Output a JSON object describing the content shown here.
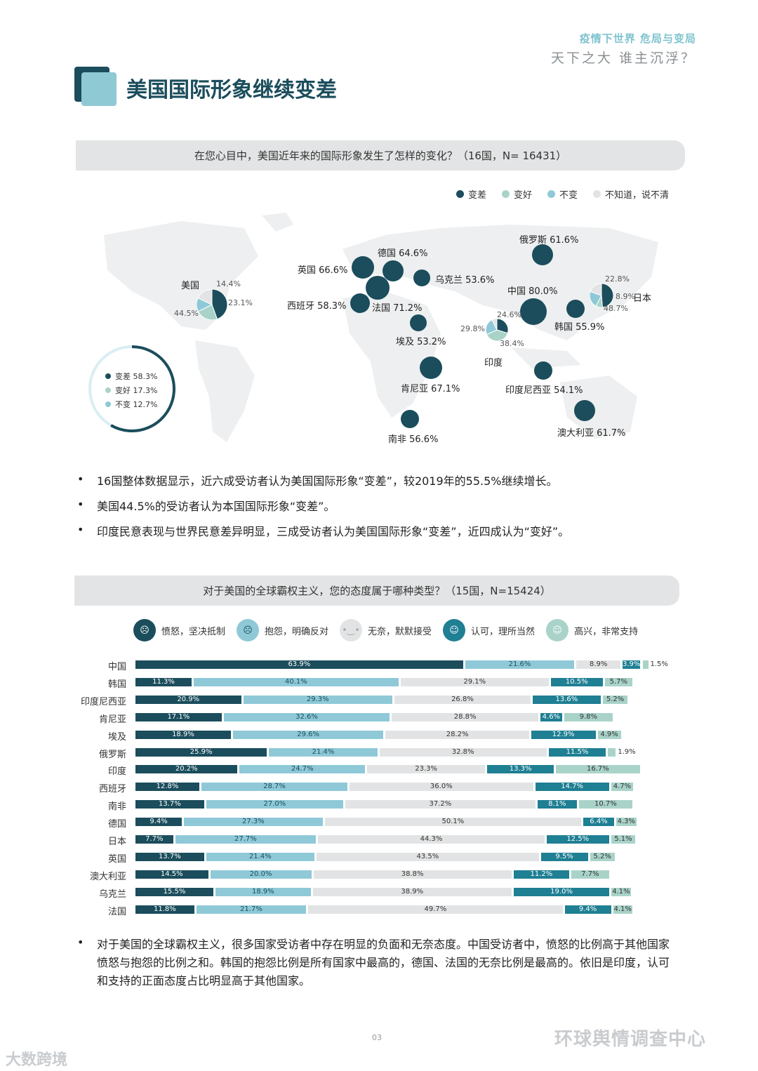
{
  "header": {
    "top_right": "疫情下世界   危局与变局",
    "slogan": "天下之大 谁主沉浮？"
  },
  "section_title": "美国国际形象继续变差",
  "q1": {
    "text": "在您心目中，美国近年来的国际形象发生了怎样的变化？（16国，N= 16431）"
  },
  "map": {
    "legend": [
      {
        "label": "变差",
        "color": "#1b4d5c"
      },
      {
        "label": "变好",
        "color": "#a9d3c9"
      },
      {
        "label": "不变",
        "color": "#8fc9d8"
      },
      {
        "label": "不知道，说不清",
        "color": "#e2e3e4"
      }
    ],
    "countries": [
      {
        "label": "俄罗斯 61.6%",
        "value": 61.6
      },
      {
        "label": "德国 64.6%",
        "value": 64.6
      },
      {
        "label": "英国 66.6%",
        "value": 66.6
      },
      {
        "label": "乌克兰 53.6%",
        "value": 53.6
      },
      {
        "label": "中国 80.0%",
        "value": 80.0
      },
      {
        "label": "西班牙 58.3%",
        "value": 58.3
      },
      {
        "label": "法国 71.2%",
        "value": 71.2
      },
      {
        "label": "埃及 53.2%",
        "value": 53.2
      },
      {
        "label": "韩国 55.9%",
        "value": 55.9
      },
      {
        "label": "肯尼亚 67.1%",
        "value": 67.1
      },
      {
        "label": "印度尼西亚 54.1%",
        "value": 54.1
      },
      {
        "label": "南非 56.6%",
        "value": 56.6
      },
      {
        "label": "澳大利亚 61.7%",
        "value": 61.7
      }
    ],
    "pies": [
      {
        "name": "美国",
        "worse": "44.5%",
        "better": "23.1%",
        "same": "14.4%",
        "values": [
          44.5,
          23.1,
          14.4,
          18.0
        ]
      },
      {
        "name": "印度",
        "worse": "29.8%",
        "better": "38.4%",
        "same": "24.6%",
        "values": [
          29.8,
          38.4,
          24.6,
          7.2
        ]
      },
      {
        "name": "日本",
        "worse": "48.7%",
        "better": "8.9%",
        "same": "22.8%",
        "values": [
          48.7,
          8.9,
          22.8,
          19.6
        ]
      }
    ],
    "overall": [
      {
        "label": "变差 58.3%",
        "value": 58.3
      },
      {
        "label": "变好 17.3%",
        "value": 17.3
      },
      {
        "label": "不变 12.7%",
        "value": 12.7
      }
    ]
  },
  "bullets1": [
    "16国整体数据显示，近六成受访者认为美国国际形象“变差”，较2019年的55.5%继续增长。",
    "美国44.5%的受访者认为本国国际形象“变差”。",
    "印度民意表现与世界民意差异明显，三成受访者认为美国国际形象“变差”，近四成认为“变好”。"
  ],
  "q2": {
    "text": "对于美国的全球霸权主义，您的态度属于哪种类型？（15国，N=15424）"
  },
  "attitudes": [
    {
      "label": "愤怒，坚决抵制",
      "color": "#1b4d5c"
    },
    {
      "label": "抱怨，明确反对",
      "color": "#8fc9d8"
    },
    {
      "label": "无奈，默默接受",
      "color": "#e2e3e4"
    },
    {
      "label": "认可，理所当然",
      "color": "#1f7f93"
    },
    {
      "label": "高兴，非常支持",
      "color": "#a9d3c9"
    }
  ],
  "chart_data": {
    "type": "bar",
    "stacked": true,
    "orientation": "horizontal",
    "categories": [
      "中国",
      "韩国",
      "印度尼西亚",
      "肯尼亚",
      "埃及",
      "俄罗斯",
      "印度",
      "西班牙",
      "南非",
      "德国",
      "日本",
      "英国",
      "澳大利亚",
      "乌克兰",
      "法国"
    ],
    "series": [
      {
        "name": "愤怒，坚决抵制",
        "values": [
          63.9,
          11.3,
          20.9,
          17.1,
          18.9,
          25.9,
          20.2,
          12.8,
          13.7,
          9.4,
          7.7,
          13.7,
          14.5,
          15.5,
          11.8
        ]
      },
      {
        "name": "抱怨，明确反对",
        "values": [
          21.6,
          40.1,
          29.3,
          32.6,
          29.6,
          21.4,
          24.7,
          28.7,
          27.0,
          27.3,
          27.7,
          21.4,
          20.0,
          18.9,
          21.7
        ]
      },
      {
        "name": "无奈，默默接受",
        "values": [
          8.9,
          29.1,
          26.8,
          28.8,
          28.2,
          32.8,
          23.3,
          36.0,
          37.2,
          50.1,
          44.3,
          43.5,
          38.8,
          38.9,
          49.7
        ]
      },
      {
        "name": "认可，理所当然",
        "values": [
          3.9,
          10.5,
          13.6,
          4.6,
          12.9,
          11.5,
          13.3,
          14.7,
          8.1,
          6.4,
          12.5,
          9.5,
          11.2,
          19.0,
          9.4
        ]
      },
      {
        "name": "高兴，非常支持",
        "values": [
          1.5,
          5.7,
          5.2,
          9.8,
          4.9,
          1.9,
          16.7,
          4.7,
          10.7,
          4.3,
          5.1,
          5.2,
          7.7,
          4.1,
          4.1
        ]
      }
    ],
    "labels": [
      [
        "63.9%",
        "21.6%",
        "8.9%",
        "3.9%",
        "1.5%"
      ],
      [
        "11.3%",
        "40.1%",
        "29.1%",
        "10.5%",
        "5.7%"
      ],
      [
        "20.9%",
        "29.3%",
        "26.8%",
        "13.6%",
        "5.2%"
      ],
      [
        "17.1%",
        "32.6%",
        "28.8%",
        "4.6%",
        "9.8%"
      ],
      [
        "18.9%",
        "29.6%",
        "28.2%",
        "12.9%",
        "4.9%"
      ],
      [
        "25.9%",
        "21.4%",
        "32.8%",
        "11.5%",
        "1.9%"
      ],
      [
        "20.2%",
        "24.7%",
        "23.3%",
        "13.3%",
        "16.7%"
      ],
      [
        "12.8%",
        "28.7%",
        "36.0%",
        "14.7%",
        "4.7%"
      ],
      [
        "13.7%",
        "27.0%",
        "37.2%",
        "8.1%",
        "10.7%"
      ],
      [
        "9.4%",
        "27.3%",
        "50.1%",
        "6.4%",
        "4.3%"
      ],
      [
        "7.7%",
        "27.7%",
        "44.3%",
        "12.5%",
        "5.1%"
      ],
      [
        "13.7%",
        "21.4%",
        "43.5%",
        "9.5%",
        "5.2%"
      ],
      [
        "14.5%",
        "20.0%",
        "38.8%",
        "11.2%",
        "7.7%"
      ],
      [
        "15.5%",
        "18.9%",
        "38.9%",
        "19.0%",
        "4.1%"
      ],
      [
        "11.8%",
        "21.7%",
        "49.7%",
        "9.4%",
        "4.1%"
      ]
    ]
  },
  "bullets2": [
    "对于美国的全球霸权主义，很多国家受访者中存在明显的负面和无奈态度。中国受访者中，愤怒的比例高于其他国家愤怒与抱怨的比例之和。韩国的抱怨比例是所有国家中最高的，德国、法国的无奈比例是最高的。依旧是印度，认可和支持的正面态度占比明显高于其他国家。"
  ],
  "footer": {
    "page": "03",
    "watermark": "环球舆情调查中心",
    "watermark2": "大数跨境"
  }
}
